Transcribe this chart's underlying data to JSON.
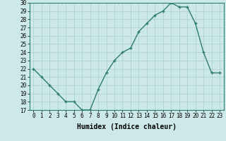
{
  "xlabel": "Humidex (Indice chaleur)",
  "ylabel": "",
  "x": [
    0,
    1,
    2,
    3,
    4,
    5,
    6,
    7,
    8,
    9,
    10,
    11,
    12,
    13,
    14,
    15,
    16,
    17,
    18,
    19,
    20,
    21,
    22,
    23
  ],
  "y": [
    22,
    21,
    20,
    19,
    18,
    18,
    17,
    17,
    19.5,
    21.5,
    23,
    24,
    24.5,
    26.5,
    27.5,
    28.5,
    29,
    30,
    29.5,
    29.5,
    27.5,
    24,
    21.5,
    21.5
  ],
  "line_color": "#2d7d6e",
  "marker": "+",
  "marker_size": 3.5,
  "bg_color": "#cce8e8",
  "grid_color": "#aacfcf",
  "ylim": [
    17,
    30
  ],
  "yticks": [
    17,
    18,
    19,
    20,
    21,
    22,
    23,
    24,
    25,
    26,
    27,
    28,
    29,
    30
  ],
  "xticks": [
    0,
    1,
    2,
    3,
    4,
    5,
    6,
    7,
    8,
    9,
    10,
    11,
    12,
    13,
    14,
    15,
    16,
    17,
    18,
    19,
    20,
    21,
    22,
    23
  ],
  "xlabel_fontsize": 7,
  "tick_fontsize": 5.5,
  "line_width": 1.0
}
